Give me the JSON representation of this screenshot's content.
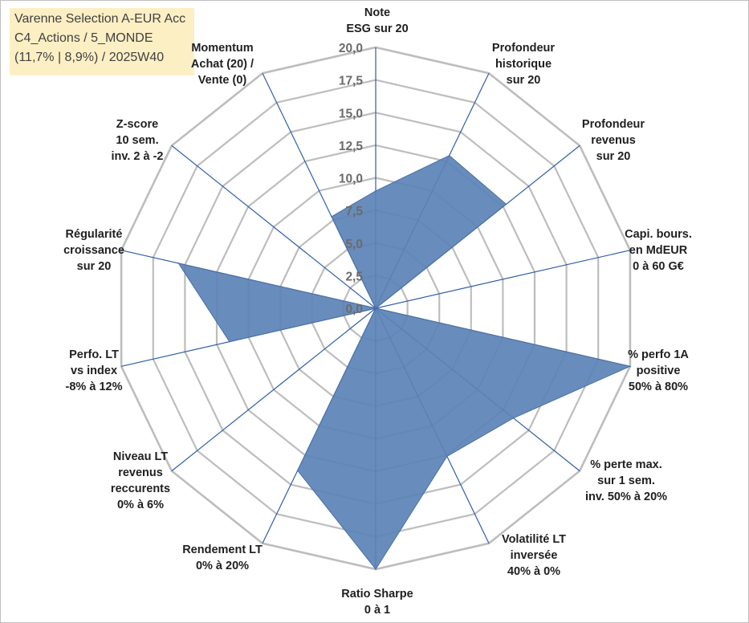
{
  "title": {
    "line1": "Varenne Selection A-EUR Acc",
    "line2": "C4_Actions / 5_MONDE",
    "line3": "(11,7% | 8,9%) / 2025W40"
  },
  "colors": {
    "fill": "#5b82b6",
    "stroke": "#4a70a5",
    "spoke": "#2f5fa8",
    "grid": "#bdbdbd",
    "title_bg": "#fdefc4"
  },
  "chart_data": {
    "type": "radar",
    "title": "Varenne Selection A-EUR Acc",
    "rmin": 0,
    "rmax": 20,
    "ticks": [
      "0,0",
      "2,5",
      "5,0",
      "7,5",
      "10,0",
      "12,5",
      "15,0",
      "17,5",
      "20,0"
    ],
    "tick_values": [
      0,
      2.5,
      5,
      7.5,
      10,
      12.5,
      15,
      17.5,
      20
    ],
    "categories": [
      {
        "lines": [
          "Note",
          "ESG sur 20"
        ],
        "anchor": "middle"
      },
      {
        "lines": [
          "Profondeur",
          "historique",
          "sur 20"
        ],
        "anchor": "middle"
      },
      {
        "lines": [
          "Profondeur",
          "revenus",
          "sur 20"
        ],
        "anchor": "middle"
      },
      {
        "lines": [
          "Capi. bours.",
          "en MdEUR",
          "0 à 60 G€"
        ],
        "anchor": "middle"
      },
      {
        "lines": [
          "% perfo 1A",
          "positive",
          "50% à 80%"
        ],
        "anchor": "middle"
      },
      {
        "lines": [
          "% perte max.",
          "sur 1 sem.",
          "inv. 50% à 20%"
        ],
        "anchor": "middle"
      },
      {
        "lines": [
          "Volatilité LT",
          "inversée",
          "40% à 0%"
        ],
        "anchor": "middle"
      },
      {
        "lines": [
          "Ratio Sharpe",
          "0 à 1"
        ],
        "anchor": "middle"
      },
      {
        "lines": [
          "Rendement LT",
          "0% à 20%"
        ],
        "anchor": "middle"
      },
      {
        "lines": [
          "Niveau LT",
          "revenus",
          "reccurents",
          "0% à 6%"
        ],
        "anchor": "middle"
      },
      {
        "lines": [
          "Perfo. LT",
          "vs index",
          "-8% à 12%"
        ],
        "anchor": "middle"
      },
      {
        "lines": [
          "Régularité",
          "croissance",
          "sur 20"
        ],
        "anchor": "middle"
      },
      {
        "lines": [
          "Z-score",
          "10 sem.",
          "inv. 2 à -2"
        ],
        "anchor": "middle"
      },
      {
        "lines": [
          "Momentum",
          "Achat (20) /",
          "Vente (0)"
        ],
        "anchor": "middle"
      }
    ],
    "series": [
      {
        "name": "Varenne Selection A-EUR Acc",
        "values": [
          9.0,
          13.0,
          12.8,
          0,
          20.0,
          13.5,
          12.6,
          20.0,
          13.8,
          0,
          11.5,
          15.5,
          0,
          7.8
        ]
      }
    ]
  }
}
